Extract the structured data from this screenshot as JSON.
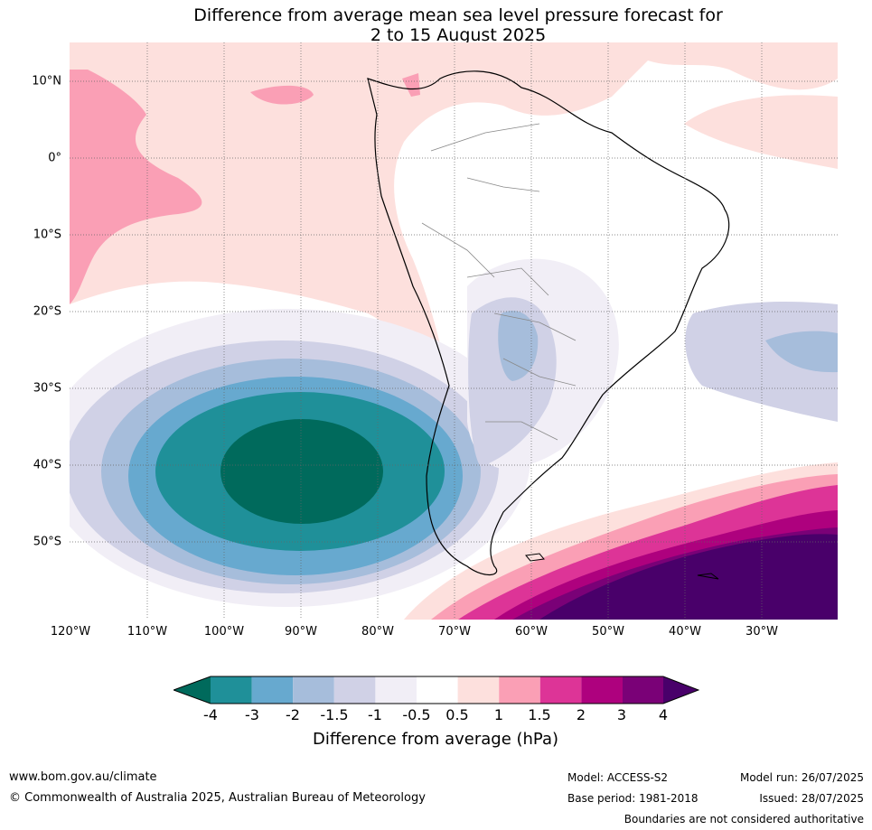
{
  "title_line1": "Difference from average mean sea level pressure forecast for",
  "title_line2": "2 to 15 August 2025",
  "lat_labels": [
    "10°N",
    "0°",
    "10°S",
    "20°S",
    "30°S",
    "40°S",
    "50°S"
  ],
  "lon_labels": [
    "120°W",
    "110°W",
    "100°W",
    "90°W",
    "80°W",
    "70°W",
    "60°W",
    "50°W",
    "40°W",
    "30°W"
  ],
  "colorbar": {
    "label": "Difference from average (hPa)",
    "ticks": [
      "-4",
      "-3",
      "-2",
      "-1.5",
      "-1",
      "-0.5",
      "0.5",
      "1",
      "1.5",
      "2",
      "3",
      "4"
    ],
    "colors": {
      "lt_minus4": "#006a5c",
      "minus4_to_minus3": "#1f9099",
      "minus3_to_minus2": "#67a9cf",
      "minus2_to_minus1_5": "#a6bddb",
      "minus1_5_to_minus1": "#d0d1e6",
      "minus1_to_minus0_5": "#f1eef6",
      "minus0_5_to_0_5": "#ffffff",
      "0_5_to_1": "#fde0dd",
      "1_to_1_5": "#fa9fb5",
      "1_5_to_2": "#dd3497",
      "2_to_3": "#ae017e",
      "3_to_4": "#7a0177",
      "gt_4": "#49006a"
    }
  },
  "footer": {
    "url": "www.bom.gov.au/climate",
    "copyright": "© Commonwealth of Australia 2025, Australian Bureau of Meteorology",
    "model": "Model: ACCESS-S2",
    "base_period": "Base period: 1981-2018",
    "model_run": "Model run: 26/07/2025",
    "issued": "Issued: 28/07/2025",
    "disclaimer": "Boundaries are not considered authoritative"
  }
}
